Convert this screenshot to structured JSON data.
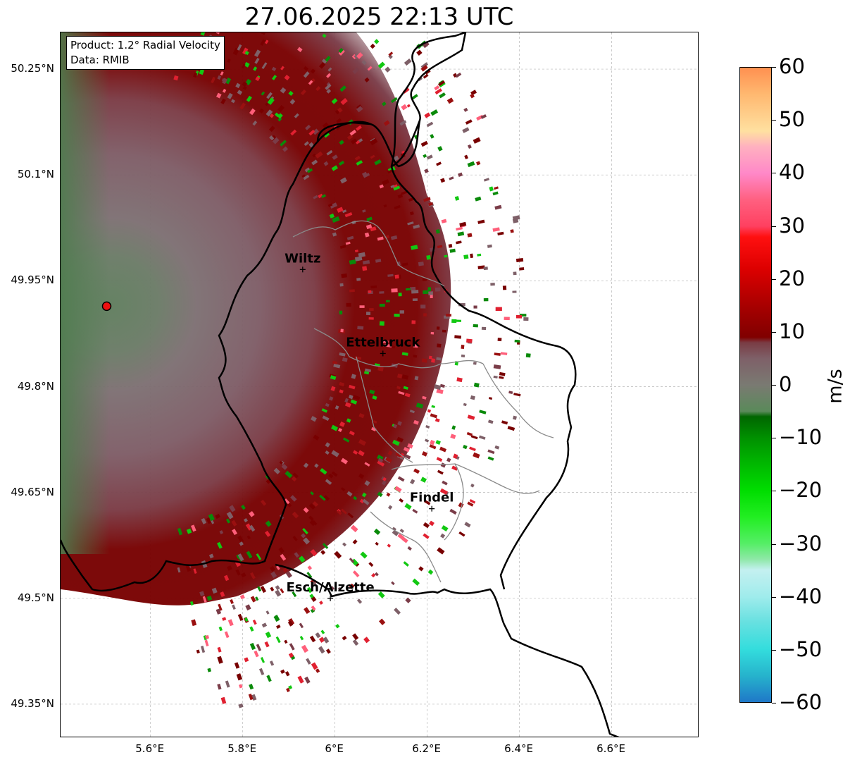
{
  "title": "27.06.2025 22:13 UTC",
  "info": {
    "product": "Product: 1.2° Radial Velocity",
    "data": "Data: RMIB"
  },
  "lat_ticks": [
    "50.25°N",
    "50.1°N",
    "49.95°N",
    "49.8°N",
    "49.65°N",
    "49.5°N",
    "49.35°N"
  ],
  "lon_ticks": [
    "5.6°E",
    "5.8°E",
    "6°E",
    "6.2°E",
    "6.4°E",
    "6.6°E"
  ],
  "cities": [
    {
      "name": "Wiltz",
      "lon": 5.93,
      "lat": 49.966
    },
    {
      "name": "Ettelbruck",
      "lon": 6.104,
      "lat": 49.847
    },
    {
      "name": "Findel",
      "lon": 6.21,
      "lat": 49.627
    },
    {
      "name": "Esch/Alzette",
      "lon": 5.99,
      "lat": 49.5
    }
  ],
  "radar": {
    "lon": 5.505,
    "lat": 49.914
  },
  "colorbar": {
    "label": "m/s",
    "ticks": [
      "60",
      "50",
      "40",
      "30",
      "20",
      "10",
      "0",
      "−10",
      "−20",
      "−30",
      "−40",
      "−50",
      "−60"
    ],
    "min": -60,
    "max": 60,
    "stops": [
      {
        "v": -60,
        "c": "#1f78c8"
      },
      {
        "v": -55,
        "c": "#26b3cc"
      },
      {
        "v": -50,
        "c": "#33dddd"
      },
      {
        "v": -45,
        "c": "#66e0e0"
      },
      {
        "v": -40,
        "c": "#a0ecec"
      },
      {
        "v": -35,
        "c": "#c4f0f0"
      },
      {
        "v": -33,
        "c": "#8fe8a8"
      },
      {
        "v": -30,
        "c": "#55ee66"
      },
      {
        "v": -25,
        "c": "#22ee22"
      },
      {
        "v": -20,
        "c": "#00dd00"
      },
      {
        "v": -15,
        "c": "#00b800"
      },
      {
        "v": -10,
        "c": "#009000"
      },
      {
        "v": -6,
        "c": "#006600"
      },
      {
        "v": -5,
        "c": "#5a8a5a"
      },
      {
        "v": 0,
        "c": "#7a7a72"
      },
      {
        "v": 5,
        "c": "#7e6068"
      },
      {
        "v": 8,
        "c": "#7a3c44"
      },
      {
        "v": 9,
        "c": "#800000"
      },
      {
        "v": 15,
        "c": "#a80000"
      },
      {
        "v": 22,
        "c": "#dd0000"
      },
      {
        "v": 28,
        "c": "#ff1010"
      },
      {
        "v": 30,
        "c": "#ff4060"
      },
      {
        "v": 35,
        "c": "#ff6080"
      },
      {
        "v": 40,
        "c": "#ff88c8"
      },
      {
        "v": 45,
        "c": "#ffb0c0"
      },
      {
        "v": 48,
        "c": "#ffe0a0"
      },
      {
        "v": 55,
        "c": "#ffb870"
      },
      {
        "v": 60,
        "c": "#ff9050"
      }
    ]
  },
  "colors": {
    "approaching_far": "#5e7c5c",
    "neutral": "#7e6a72",
    "receding_mid": "#7a4048",
    "receding_strong": "#780000",
    "radar_marker": "#ee1111"
  }
}
